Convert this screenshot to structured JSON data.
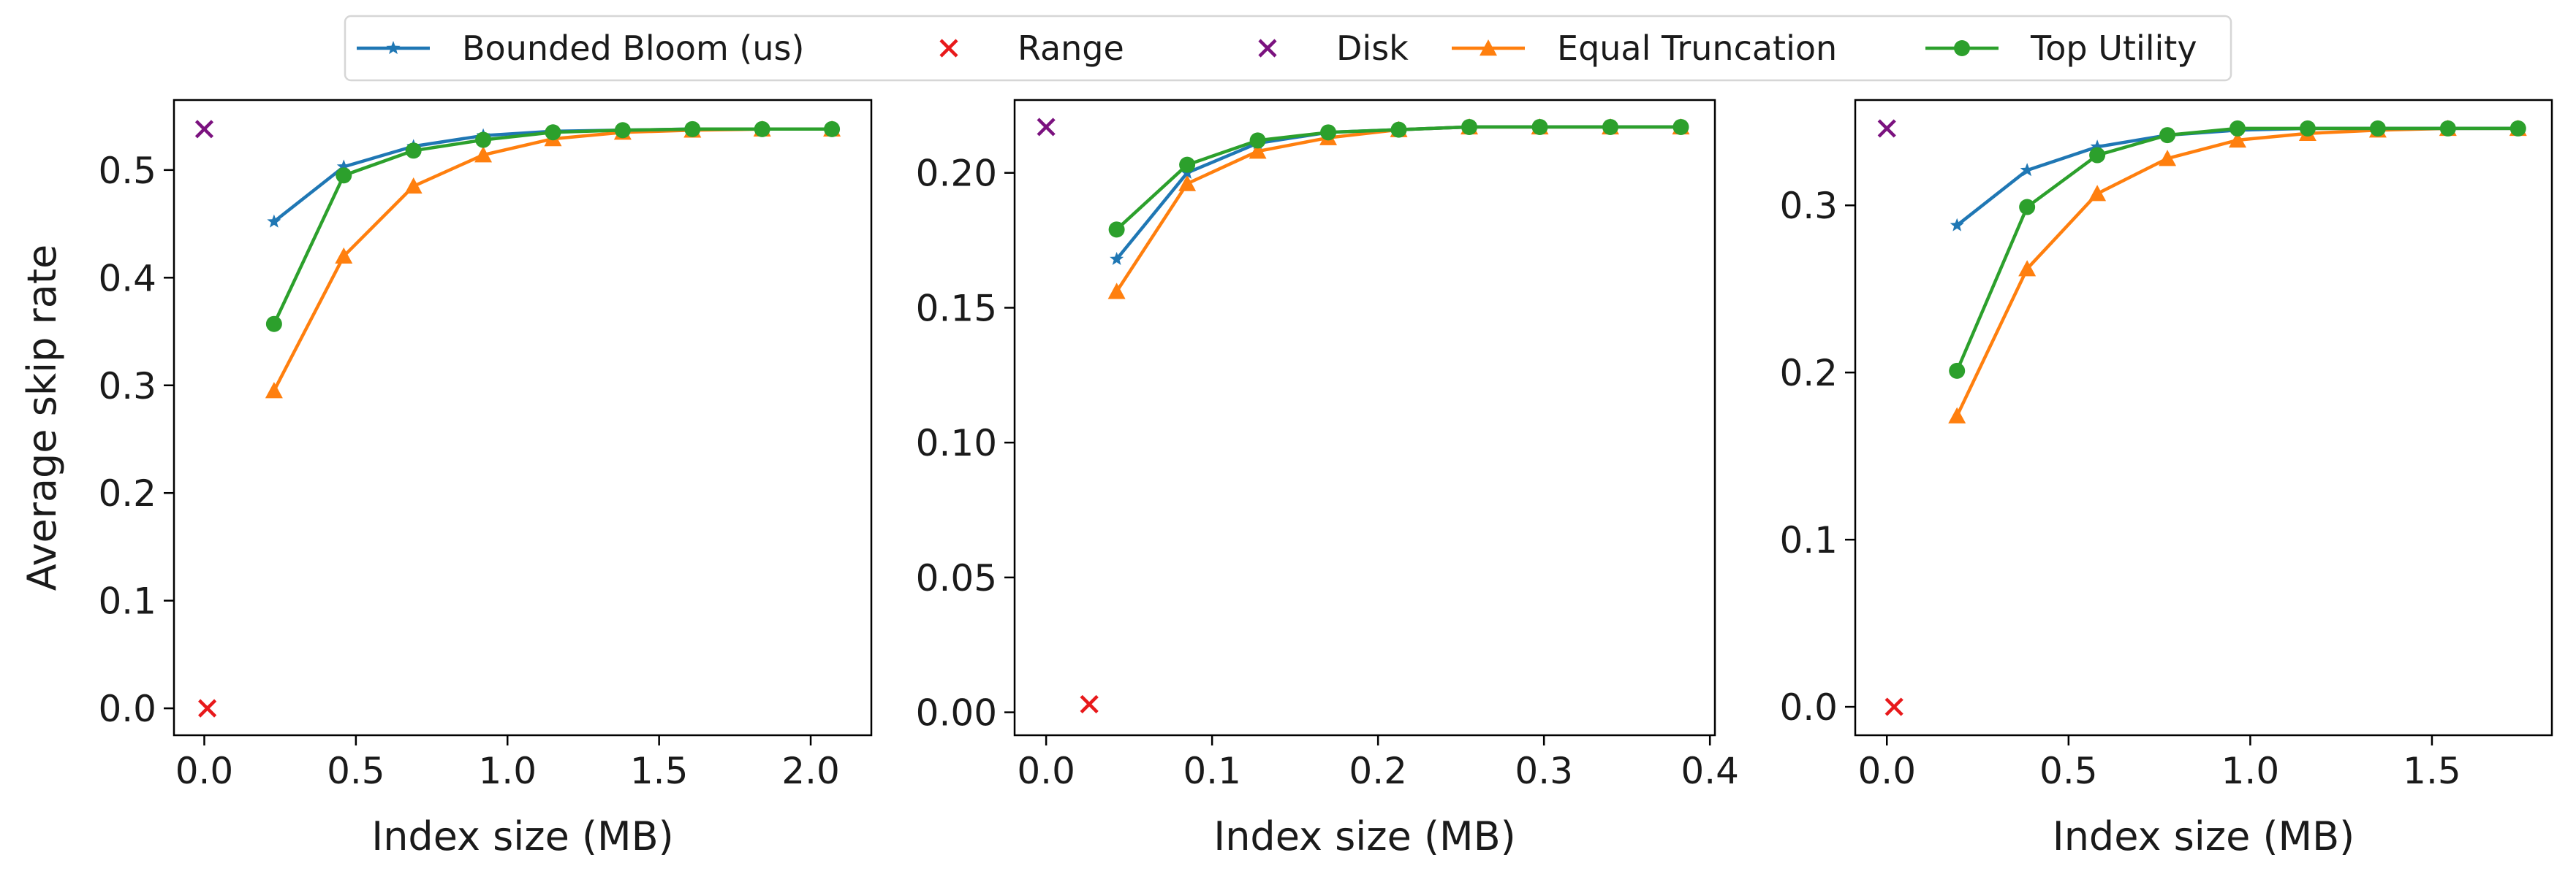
{
  "legend": [
    {
      "label": "Bounded Bloom (us)",
      "color": "#1f77b4",
      "marker": "star",
      "line": true
    },
    {
      "label": "Range",
      "color": "#e8191b",
      "marker": "x",
      "line": false
    },
    {
      "label": "Disk",
      "color": "#7b127f",
      "marker": "x",
      "line": false
    },
    {
      "label": "Equal Truncation",
      "color": "#ff7f0e",
      "marker": "triangle",
      "line": true
    },
    {
      "label": "Top Utility",
      "color": "#2ca02c",
      "marker": "circle",
      "line": true
    }
  ],
  "chart_data": [
    {
      "type": "line",
      "xlabel": "Index size (MB)",
      "ylabel": "Average skip rate",
      "xlim": [
        -0.1,
        2.2
      ],
      "ylim": [
        -0.025,
        0.565
      ],
      "xticks": [
        0.0,
        0.5,
        1.0,
        1.5,
        2.0
      ],
      "xtick_labels": [
        "0.0",
        "0.5",
        "1.0",
        "1.5",
        "2.0"
      ],
      "yticks": [
        0.0,
        0.1,
        0.2,
        0.3,
        0.4,
        0.5
      ],
      "ytick_labels": [
        "0.0",
        "0.1",
        "0.2",
        "0.3",
        "0.4",
        "0.5"
      ],
      "series": [
        {
          "name": "Bounded Bloom (us)",
          "x": [
            0.23,
            0.46,
            0.69,
            0.92,
            1.15,
            1.38,
            1.61,
            1.84,
            2.07
          ],
          "y": [
            0.452,
            0.503,
            0.522,
            0.532,
            0.536,
            0.537,
            0.538,
            0.538,
            0.538
          ]
        },
        {
          "name": "Range",
          "x": [
            0.01
          ],
          "y": [
            0.0
          ]
        },
        {
          "name": "Disk",
          "x": [
            0.0
          ],
          "y": [
            0.538
          ]
        },
        {
          "name": "Equal Truncation",
          "x": [
            0.23,
            0.46,
            0.69,
            0.92,
            1.15,
            1.38,
            1.61,
            1.84,
            2.07
          ],
          "y": [
            0.295,
            0.42,
            0.485,
            0.514,
            0.529,
            0.535,
            0.537,
            0.538,
            0.538
          ]
        },
        {
          "name": "Top Utility",
          "x": [
            0.23,
            0.46,
            0.69,
            0.92,
            1.15,
            1.38,
            1.61,
            1.84,
            2.07
          ],
          "y": [
            0.357,
            0.495,
            0.518,
            0.528,
            0.535,
            0.537,
            0.538,
            0.538,
            0.538
          ]
        }
      ]
    },
    {
      "type": "line",
      "xlabel": "Index size (MB)",
      "ylabel": "",
      "xlim": [
        -0.019,
        0.403
      ],
      "ylim": [
        -0.0085,
        0.227
      ],
      "xticks": [
        0.0,
        0.1,
        0.2,
        0.3,
        0.4
      ],
      "xtick_labels": [
        "0.0",
        "0.1",
        "0.2",
        "0.3",
        "0.4"
      ],
      "yticks": [
        0.0,
        0.05,
        0.1,
        0.15,
        0.2
      ],
      "ytick_labels": [
        "0.00",
        "0.05",
        "0.10",
        "0.15",
        "0.20"
      ],
      "series": [
        {
          "name": "Bounded Bloom (us)",
          "x": [
            0.0425,
            0.085,
            0.1275,
            0.17,
            0.2125,
            0.255,
            0.2975,
            0.34,
            0.3825
          ],
          "y": [
            0.168,
            0.2,
            0.211,
            0.215,
            0.216,
            0.217,
            0.217,
            0.217,
            0.217
          ]
        },
        {
          "name": "Range",
          "x": [
            0.026
          ],
          "y": [
            0.003
          ]
        },
        {
          "name": "Disk",
          "x": [
            0.0
          ],
          "y": [
            0.217
          ]
        },
        {
          "name": "Equal Truncation",
          "x": [
            0.0425,
            0.085,
            0.1275,
            0.17,
            0.2125,
            0.255,
            0.2975,
            0.34,
            0.3825
          ],
          "y": [
            0.156,
            0.196,
            0.208,
            0.213,
            0.216,
            0.217,
            0.217,
            0.217,
            0.217
          ]
        },
        {
          "name": "Top Utility",
          "x": [
            0.0425,
            0.085,
            0.1275,
            0.17,
            0.2125,
            0.255,
            0.2975,
            0.34,
            0.3825
          ],
          "y": [
            0.179,
            0.203,
            0.212,
            0.215,
            0.216,
            0.217,
            0.217,
            0.217,
            0.217
          ]
        }
      ]
    },
    {
      "type": "line",
      "xlabel": "Index size (MB)",
      "ylabel": "",
      "xlim": [
        -0.087,
        1.83
      ],
      "ylim": [
        -0.017,
        0.363
      ],
      "xticks": [
        0.0,
        0.5,
        1.0,
        1.5
      ],
      "xtick_labels": [
        "0.0",
        "0.5",
        "1.0",
        "1.5"
      ],
      "yticks": [
        0.0,
        0.1,
        0.2,
        0.3
      ],
      "ytick_labels": [
        "0.0",
        "0.1",
        "0.2",
        "0.3"
      ],
      "series": [
        {
          "name": "Bounded Bloom (us)",
          "x": [
            0.193,
            0.386,
            0.579,
            0.772,
            0.965,
            1.158,
            1.351,
            1.544,
            1.737
          ],
          "y": [
            0.288,
            0.321,
            0.335,
            0.342,
            0.345,
            0.346,
            0.346,
            0.346,
            0.346
          ]
        },
        {
          "name": "Range",
          "x": [
            0.02
          ],
          "y": [
            0.0
          ]
        },
        {
          "name": "Disk",
          "x": [
            0.0
          ],
          "y": [
            0.346
          ]
        },
        {
          "name": "Equal Truncation",
          "x": [
            0.193,
            0.386,
            0.579,
            0.772,
            0.965,
            1.158,
            1.351,
            1.544,
            1.737
          ],
          "y": [
            0.174,
            0.262,
            0.307,
            0.328,
            0.339,
            0.343,
            0.345,
            0.346,
            0.346
          ]
        },
        {
          "name": "Top Utility",
          "x": [
            0.193,
            0.386,
            0.579,
            0.772,
            0.965,
            1.158,
            1.351,
            1.544,
            1.737
          ],
          "y": [
            0.201,
            0.299,
            0.33,
            0.342,
            0.346,
            0.346,
            0.346,
            0.346,
            0.346
          ]
        }
      ]
    }
  ]
}
